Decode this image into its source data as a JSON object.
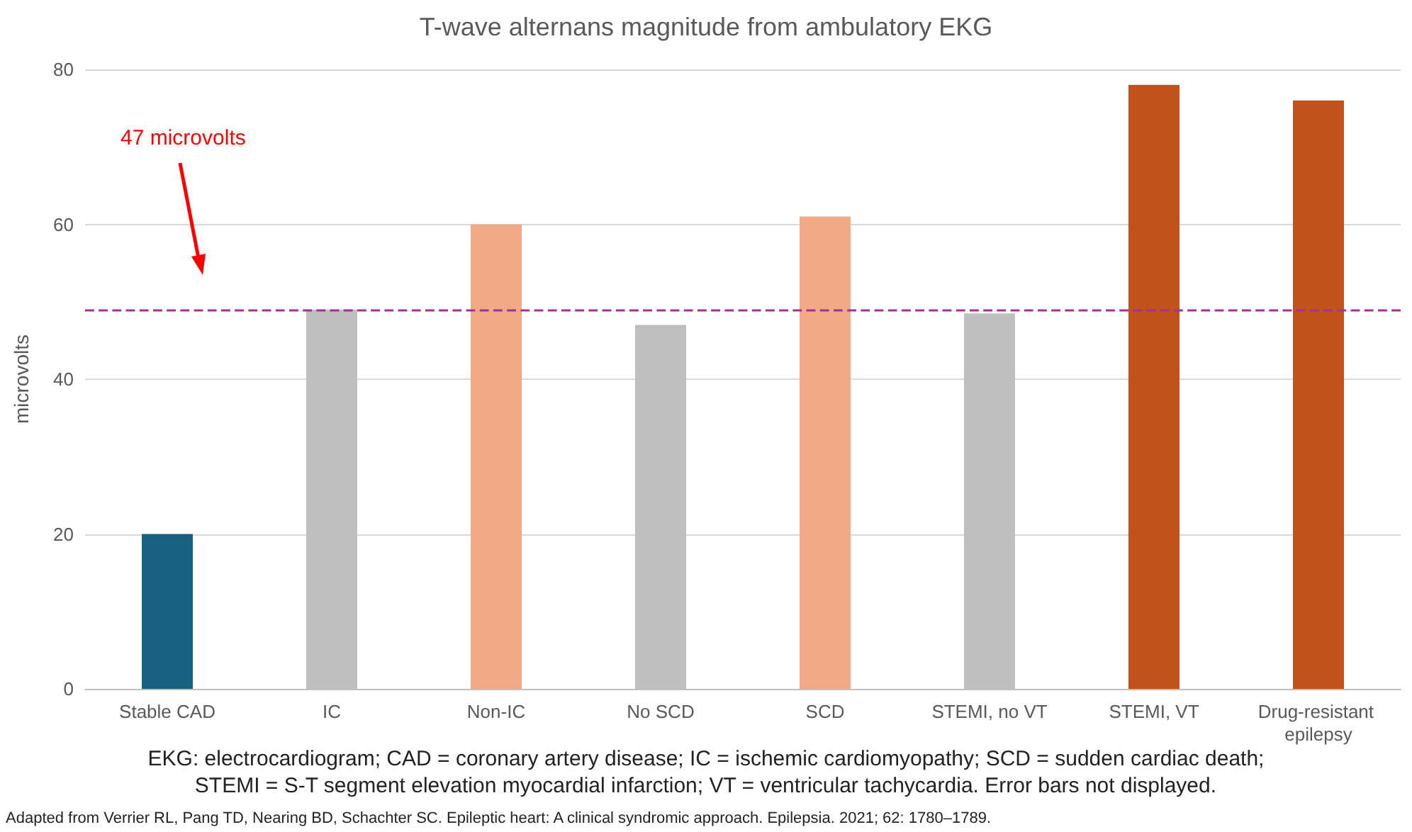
{
  "chart_data": {
    "type": "bar",
    "title": "T-wave alternans magnitude from ambulatory EKG",
    "ylabel": "microvolts",
    "categories": [
      "Stable CAD",
      "IC",
      "Non-IC",
      "No SCD",
      "SCD",
      "STEMI, no VT",
      "STEMI, VT",
      "Drug-resistant epilepsy"
    ],
    "values": [
      20,
      49,
      60,
      47,
      61,
      48.5,
      78,
      76
    ],
    "colors": [
      "#17607f",
      "#bfbfbf",
      "#f1a986",
      "#bfbfbf",
      "#f1a986",
      "#bfbfbf",
      "#c0521a",
      "#c0521a"
    ],
    "ylim": [
      0,
      80
    ],
    "yticks": [
      0,
      20,
      40,
      60,
      80
    ],
    "grid": "y",
    "ref_lines": [
      {
        "axis": "y",
        "value": 49,
        "color": "#a0309a",
        "line_style": "dashed"
      }
    ],
    "annotations": [
      "47 microvolts",
      "EKG: electrocardiogram; CAD = coronary artery disease; IC = ischemic cardiomyopathy; SCD = sudden cardiac death;",
      "STEMI = S-T segment elevation myocardial infarction; VT = ventricular tachycardia. Error bars not displayed.",
      "Adapted from Verrier RL, Pang TD, Nearing BD, Schachter SC. Epileptic heart: A clinical syndromic approach. Epilepsia. 2021; 62: 1780–1789."
    ]
  }
}
